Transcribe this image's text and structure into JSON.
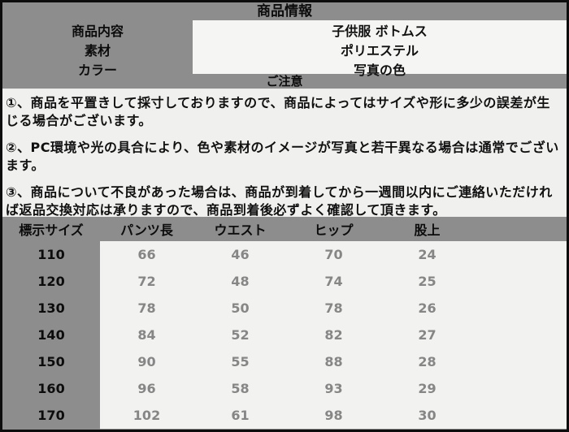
{
  "product_info": {
    "title": "商品情報",
    "rows": [
      {
        "label": "商品内容",
        "value": "子供服 ボトムス"
      },
      {
        "label": "素材",
        "value": "ポリエステル"
      },
      {
        "label": "カラー",
        "value": "写真の色"
      }
    ]
  },
  "notice": {
    "title": "ご注意",
    "items": [
      "①、商品を平置きして採寸しておりますので、商品によってはサイズや形に多少の誤差が生じる場合がございます。",
      "②、PC環境や光の具合により、色や素材のイメージが写真と若干異なる場合は通常でございます。",
      "③、商品について不良があった場合は、商品が到着してから一週間以内にご連絡いただければ返品交換対応は承りますので、商品到着後必ずよく確認して頂きます。"
    ]
  },
  "size_table": {
    "headers": [
      "標示サイズ",
      "パンツ長",
      "ウエスト",
      "ヒップ",
      "股上"
    ],
    "rows": [
      {
        "size": "110",
        "values": [
          "66",
          "46",
          "70",
          "24"
        ]
      },
      {
        "size": "120",
        "values": [
          "72",
          "48",
          "74",
          "25"
        ]
      },
      {
        "size": "130",
        "values": [
          "78",
          "50",
          "78",
          "26"
        ]
      },
      {
        "size": "140",
        "values": [
          "84",
          "52",
          "82",
          "27"
        ]
      },
      {
        "size": "150",
        "values": [
          "90",
          "55",
          "88",
          "28"
        ]
      },
      {
        "size": "160",
        "values": [
          "96",
          "58",
          "93",
          "29"
        ]
      },
      {
        "size": "170",
        "values": [
          "102",
          "61",
          "98",
          "30"
        ]
      }
    ]
  },
  "colors": {
    "background_gray": "#8d8d8d",
    "values_panel": "#f5f5f3",
    "notes_panel": "#f0f0ee",
    "table_body": "#f2f2f0",
    "border_black": "#0d0d0d",
    "muted_value_text": "#868686"
  }
}
